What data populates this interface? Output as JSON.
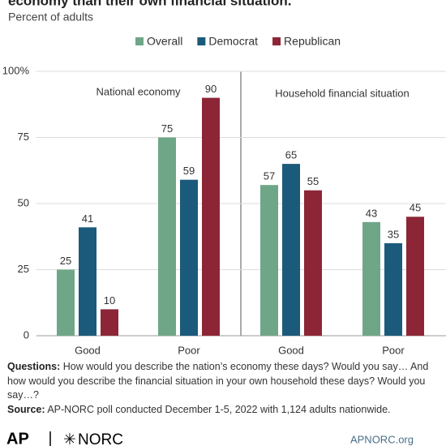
{
  "chart_data": {
    "type": "bar",
    "title": "economy than their own financial situation.",
    "subtitle": "Percent of adults",
    "categories": [
      "Good",
      "Poor",
      "Good",
      "Poor"
    ],
    "groups": [
      {
        "label": "National economy",
        "categories": [
          0,
          1
        ]
      },
      {
        "label": "Household financial situation",
        "categories": [
          2,
          3
        ]
      }
    ],
    "series": [
      {
        "name": "Overall",
        "color": "#6fa688",
        "values": [
          25,
          75,
          57,
          43
        ]
      },
      {
        "name": "Democrat",
        "color": "#1c5a7c",
        "values": [
          41,
          59,
          65,
          35
        ]
      },
      {
        "name": "Republican",
        "color": "#8c2637",
        "values": [
          10,
          90,
          55,
          45
        ]
      }
    ],
    "ylim": [
      0,
      100
    ],
    "yticks": [
      0,
      25,
      50,
      75,
      {
        "value": 100,
        "label": "100%"
      }
    ],
    "grid": true,
    "notes": [
      {
        "label": "Questions:",
        "text": "How would you describe the nation’s economy these days? Would you say… And how would you describe the financial situation in your own household these days? Would you say…?"
      },
      {
        "label": "Source:",
        "text": "AP-NORC poll conducted December 1-5, 2022 with 1,124 adults nationwide."
      }
    ],
    "footer": {
      "logo_left": "AP",
      "logo_right": "NORC",
      "url": "APNORC.org"
    }
  }
}
